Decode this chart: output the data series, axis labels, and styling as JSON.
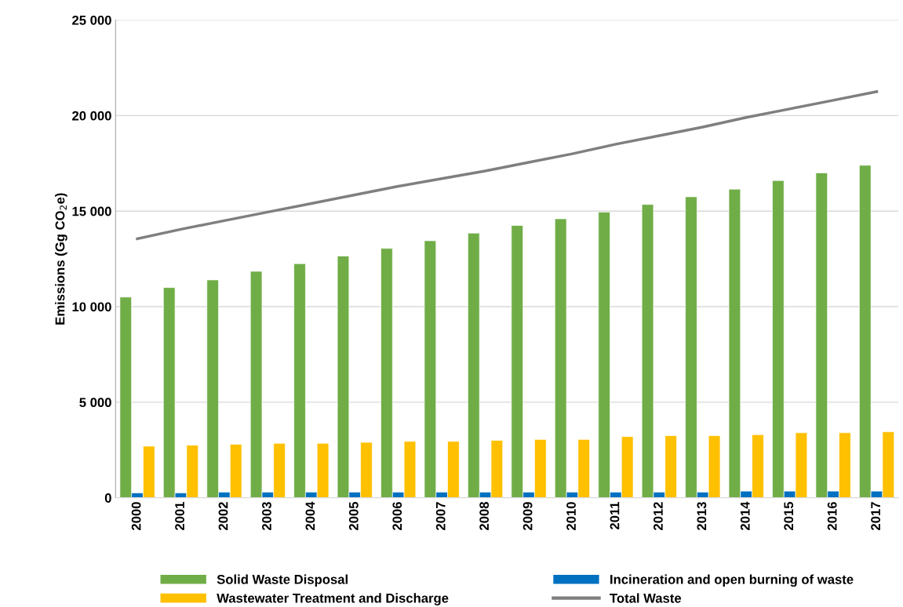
{
  "chart_data": {
    "type": "bar",
    "ylabel": "Emissions (Gg CO$_{2}$e)",
    "categories": [
      "2000",
      "2001",
      "2002",
      "2003",
      "2004",
      "2005",
      "2006",
      "2007",
      "2008",
      "2009",
      "2010",
      "2011",
      "2012",
      "2013",
      "2014",
      "2015",
      "2016",
      "2017"
    ],
    "series": [
      {
        "name": "Solid Waste Disposal",
        "color": "#70ad47",
        "values": [
          10500,
          11000,
          11400,
          11850,
          12250,
          12650,
          13050,
          13450,
          13850,
          14250,
          14600,
          14950,
          15350,
          15750,
          16150,
          16600,
          17000,
          17400
        ]
      },
      {
        "name": "Incineration and open burning of waste",
        "color": "#0070c0",
        "values": [
          250,
          250,
          290,
          290,
          290,
          290,
          290,
          290,
          290,
          290,
          290,
          290,
          290,
          290,
          350,
          350,
          350,
          350
        ]
      },
      {
        "name": "Wastewater Treatment and Discharge",
        "color": "#ffc000",
        "values": [
          2700,
          2750,
          2800,
          2850,
          2850,
          2900,
          2950,
          2950,
          3000,
          3050,
          3050,
          3200,
          3250,
          3250,
          3300,
          3400,
          3400,
          3450
        ]
      },
      {
        "name": "Total Waste",
        "type": "line",
        "color": "#7f7f7f",
        "values": [
          13550,
          14050,
          14500,
          14950,
          15400,
          15850,
          16300,
          16700,
          17100,
          17550,
          18000,
          18500,
          18950,
          19400,
          19900,
          20350,
          20800,
          21250
        ]
      }
    ],
    "ylim": [
      0,
      25000
    ],
    "yticks": [
      {
        "value": 0,
        "label": "0"
      },
      {
        "value": 5000,
        "label": "5 000"
      },
      {
        "value": 10000,
        "label": "10 000"
      },
      {
        "value": 15000,
        "label": "15 000"
      },
      {
        "value": 20000,
        "label": "20 000"
      },
      {
        "value": 25000,
        "label": "25 000"
      }
    ],
    "grid": "y",
    "legend": "bottom"
  }
}
